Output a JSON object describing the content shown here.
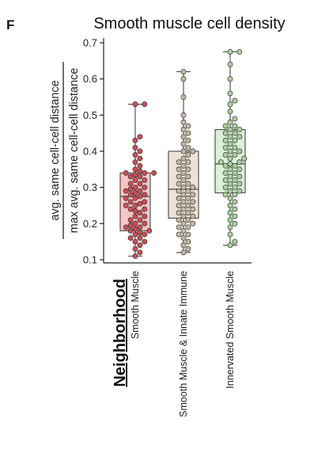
{
  "panel_label": "F",
  "chart_data": {
    "type": "box-swarm",
    "title": "Smooth muscle cell density",
    "ylabel_numerator": "avg. same cell-cell distance",
    "ylabel_denominator": "max avg. same cell-cell distance",
    "group_title": "Neighborhood",
    "ylim": [
      0.1,
      0.7
    ],
    "yticks": [
      0.1,
      0.2,
      0.3,
      0.4,
      0.5,
      0.6,
      0.7
    ],
    "ytick_labels": [
      "0.1",
      "0.2",
      "0.3",
      "0.4",
      "0.5",
      "0.6",
      "0.7"
    ],
    "categories": [
      "Smooth Muscle",
      "Smooth Muscle & Innate Immune",
      "Innervated Smooth Muscle"
    ],
    "colors": {
      "box_fills": [
        "#f4c6c6",
        "#ece3d6",
        "#dcefd8"
      ],
      "point_fills": [
        "#cf4d55",
        "#c7b8a0",
        "#a8d39a"
      ],
      "point_stroke": "#333333",
      "box_stroke": "#555555"
    },
    "boxes": [
      {
        "whisker_low": 0.11,
        "q1": 0.18,
        "median": 0.275,
        "q3": 0.34,
        "whisker_high": 0.53
      },
      {
        "whisker_low": 0.12,
        "q1": 0.215,
        "median": 0.295,
        "q3": 0.4,
        "whisker_high": 0.62
      },
      {
        "whisker_low": 0.14,
        "q1": 0.285,
        "median": 0.365,
        "q3": 0.46,
        "whisker_high": 0.675
      }
    ],
    "points": [
      [
        0.53,
        0.53,
        0.44,
        0.43,
        0.41,
        0.4,
        0.39,
        0.38,
        0.37,
        0.36,
        0.35,
        0.345,
        0.34,
        0.34,
        0.34,
        0.335,
        0.33,
        0.33,
        0.32,
        0.32,
        0.31,
        0.31,
        0.3,
        0.3,
        0.295,
        0.29,
        0.29,
        0.285,
        0.28,
        0.28,
        0.275,
        0.27,
        0.27,
        0.26,
        0.26,
        0.255,
        0.25,
        0.25,
        0.24,
        0.24,
        0.235,
        0.23,
        0.22,
        0.22,
        0.21,
        0.21,
        0.2,
        0.2,
        0.195,
        0.19,
        0.19,
        0.185,
        0.18,
        0.18,
        0.175,
        0.17,
        0.17,
        0.16,
        0.16,
        0.15,
        0.15,
        0.14,
        0.13,
        0.12,
        0.11
      ],
      [
        0.62,
        0.6,
        0.55,
        0.5,
        0.48,
        0.47,
        0.46,
        0.45,
        0.44,
        0.43,
        0.42,
        0.41,
        0.4,
        0.4,
        0.39,
        0.38,
        0.37,
        0.37,
        0.36,
        0.35,
        0.35,
        0.34,
        0.33,
        0.33,
        0.32,
        0.31,
        0.31,
        0.3,
        0.3,
        0.29,
        0.29,
        0.28,
        0.28,
        0.27,
        0.27,
        0.26,
        0.26,
        0.25,
        0.25,
        0.24,
        0.24,
        0.23,
        0.23,
        0.22,
        0.22,
        0.21,
        0.21,
        0.2,
        0.2,
        0.19,
        0.19,
        0.18,
        0.17,
        0.17,
        0.16,
        0.15,
        0.14,
        0.13,
        0.12
      ],
      [
        0.675,
        0.675,
        0.64,
        0.6,
        0.56,
        0.54,
        0.53,
        0.51,
        0.49,
        0.48,
        0.47,
        0.47,
        0.46,
        0.46,
        0.45,
        0.45,
        0.44,
        0.44,
        0.43,
        0.43,
        0.42,
        0.41,
        0.41,
        0.4,
        0.4,
        0.39,
        0.39,
        0.38,
        0.38,
        0.37,
        0.37,
        0.365,
        0.36,
        0.36,
        0.35,
        0.35,
        0.34,
        0.34,
        0.33,
        0.33,
        0.32,
        0.32,
        0.31,
        0.31,
        0.3,
        0.3,
        0.29,
        0.29,
        0.28,
        0.28,
        0.27,
        0.26,
        0.25,
        0.24,
        0.23,
        0.22,
        0.21,
        0.2,
        0.19,
        0.17,
        0.15,
        0.14
      ]
    ]
  }
}
